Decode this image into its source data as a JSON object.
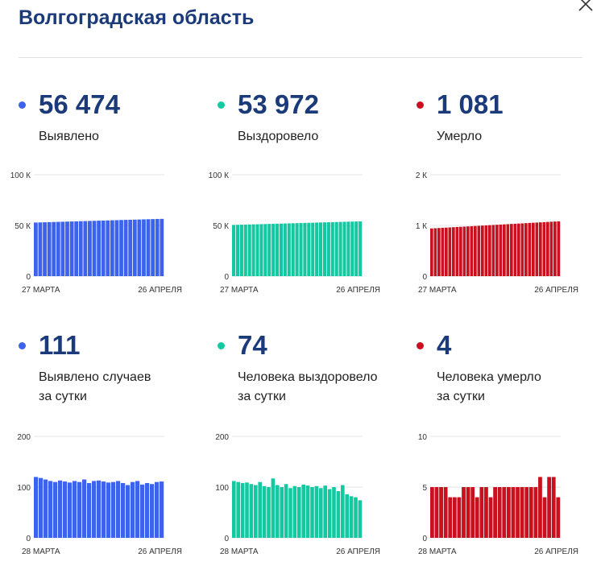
{
  "region": {
    "title": "Волгоградская область"
  },
  "colors": {
    "detected": "#3d63ed",
    "recovered": "#14c9a1",
    "deaths": "#c8101e",
    "title": "#1b3a7a"
  },
  "icons": {
    "close": "close-icon"
  },
  "stats": {
    "total_detected": {
      "value": "56 474",
      "label": "Выявлено"
    },
    "total_recovered": {
      "value": "53 972",
      "label": "Выздоровело"
    },
    "total_deaths": {
      "value": "1 081",
      "label": "Умерло"
    },
    "daily_detected": {
      "value": "111",
      "label_line1": "Выявлено случаев",
      "label_line2": "за сутки"
    },
    "daily_recovered": {
      "value": "74",
      "label_line1": "Человека выздоровело",
      "label_line2": "за сутки"
    },
    "daily_deaths": {
      "value": "4",
      "label_line1": "Человека умерло",
      "label_line2": "за сутки"
    }
  },
  "chart_data": [
    {
      "type": "bar",
      "series_key": "total_detected",
      "color": "#3d63ed",
      "ylim": [
        0,
        100000
      ],
      "ytick_labels": [
        "0",
        "50 К",
        "100 К"
      ],
      "ytick_values": [
        0,
        50000,
        100000
      ],
      "x_start_label": "27 МАРТА",
      "x_end_label": "26 АПРЕЛЯ",
      "values": [
        52870,
        53000,
        53130,
        53260,
        53390,
        53520,
        53650,
        53780,
        53910,
        54040,
        54170,
        54300,
        54430,
        54560,
        54690,
        54820,
        54950,
        55080,
        55210,
        55340,
        55470,
        55600,
        55730,
        55860,
        55990,
        56120,
        56250,
        56380,
        56474
      ]
    },
    {
      "type": "bar",
      "series_key": "total_recovered",
      "color": "#14c9a1",
      "ylim": [
        0,
        100000
      ],
      "ytick_labels": [
        "0",
        "50 К",
        "100 К"
      ],
      "ytick_values": [
        0,
        50000,
        100000
      ],
      "x_start_label": "27 МАРТА",
      "x_end_label": "26 АПРЕЛЯ",
      "values": [
        50500,
        50610,
        50720,
        50830,
        50940,
        51050,
        51160,
        51270,
        51380,
        51490,
        51600,
        51710,
        51820,
        51930,
        52040,
        52150,
        52260,
        52370,
        52480,
        52590,
        52700,
        52810,
        52920,
        53030,
        53140,
        53250,
        53360,
        53470,
        53580,
        53690,
        53800,
        53910,
        53972
      ]
    },
    {
      "type": "bar",
      "series_key": "total_deaths",
      "color": "#c8101e",
      "ylim": [
        0,
        2000
      ],
      "ytick_labels": [
        "0",
        "1 К",
        "2 К"
      ],
      "ytick_values": [
        0,
        1000,
        2000
      ],
      "x_start_label": "27 МАРТА",
      "x_end_label": "26 АПРЕЛЯ",
      "values": [
        941,
        945,
        949,
        953,
        957,
        961,
        965,
        969,
        973,
        977,
        981,
        985,
        989,
        993,
        997,
        1001,
        1005,
        1009,
        1013,
        1017,
        1021,
        1025,
        1029,
        1033,
        1037,
        1041,
        1045,
        1049,
        1053,
        1057,
        1061,
        1065,
        1069,
        1073,
        1077,
        1081
      ]
    },
    {
      "type": "bar",
      "series_key": "daily_detected",
      "color": "#3d63ed",
      "ylim": [
        0,
        200
      ],
      "ytick_labels": [
        "0",
        "100",
        "200"
      ],
      "ytick_values": [
        0,
        100,
        200
      ],
      "x_start_label": "28 МАРТА",
      "x_end_label": "26 АПРЕЛЯ",
      "values": [
        120,
        118,
        115,
        112,
        110,
        113,
        111,
        109,
        112,
        110,
        115,
        108,
        112,
        113,
        111,
        109,
        110,
        112,
        108,
        104,
        110,
        112,
        105,
        108,
        106,
        110,
        111
      ]
    },
    {
      "type": "bar",
      "series_key": "daily_recovered",
      "color": "#14c9a1",
      "ylim": [
        0,
        200
      ],
      "ytick_labels": [
        "0",
        "100",
        "200"
      ],
      "ytick_values": [
        0,
        100,
        200
      ],
      "x_start_label": "28 МАРТА",
      "x_end_label": "26 АПРЕЛЯ",
      "values": [
        112,
        110,
        108,
        109,
        106,
        104,
        110,
        102,
        100,
        117,
        104,
        100,
        106,
        98,
        102,
        100,
        105,
        103,
        100,
        102,
        98,
        103,
        96,
        100,
        92,
        104,
        86,
        82,
        80,
        74
      ]
    },
    {
      "type": "bar",
      "series_key": "daily_deaths",
      "color": "#c8101e",
      "ylim": [
        0,
        10
      ],
      "ytick_labels": [
        "0",
        "5",
        "10"
      ],
      "ytick_values": [
        0,
        5,
        10
      ],
      "x_start_label": "28 МАРТА",
      "x_end_label": "26 АПРЕЛЯ",
      "values": [
        5,
        5,
        5,
        5,
        4,
        4,
        4,
        5,
        5,
        5,
        4,
        5,
        5,
        4,
        5,
        5,
        5,
        5,
        5,
        5,
        5,
        5,
        5,
        5,
        6,
        4,
        6,
        6,
        4
      ]
    }
  ]
}
